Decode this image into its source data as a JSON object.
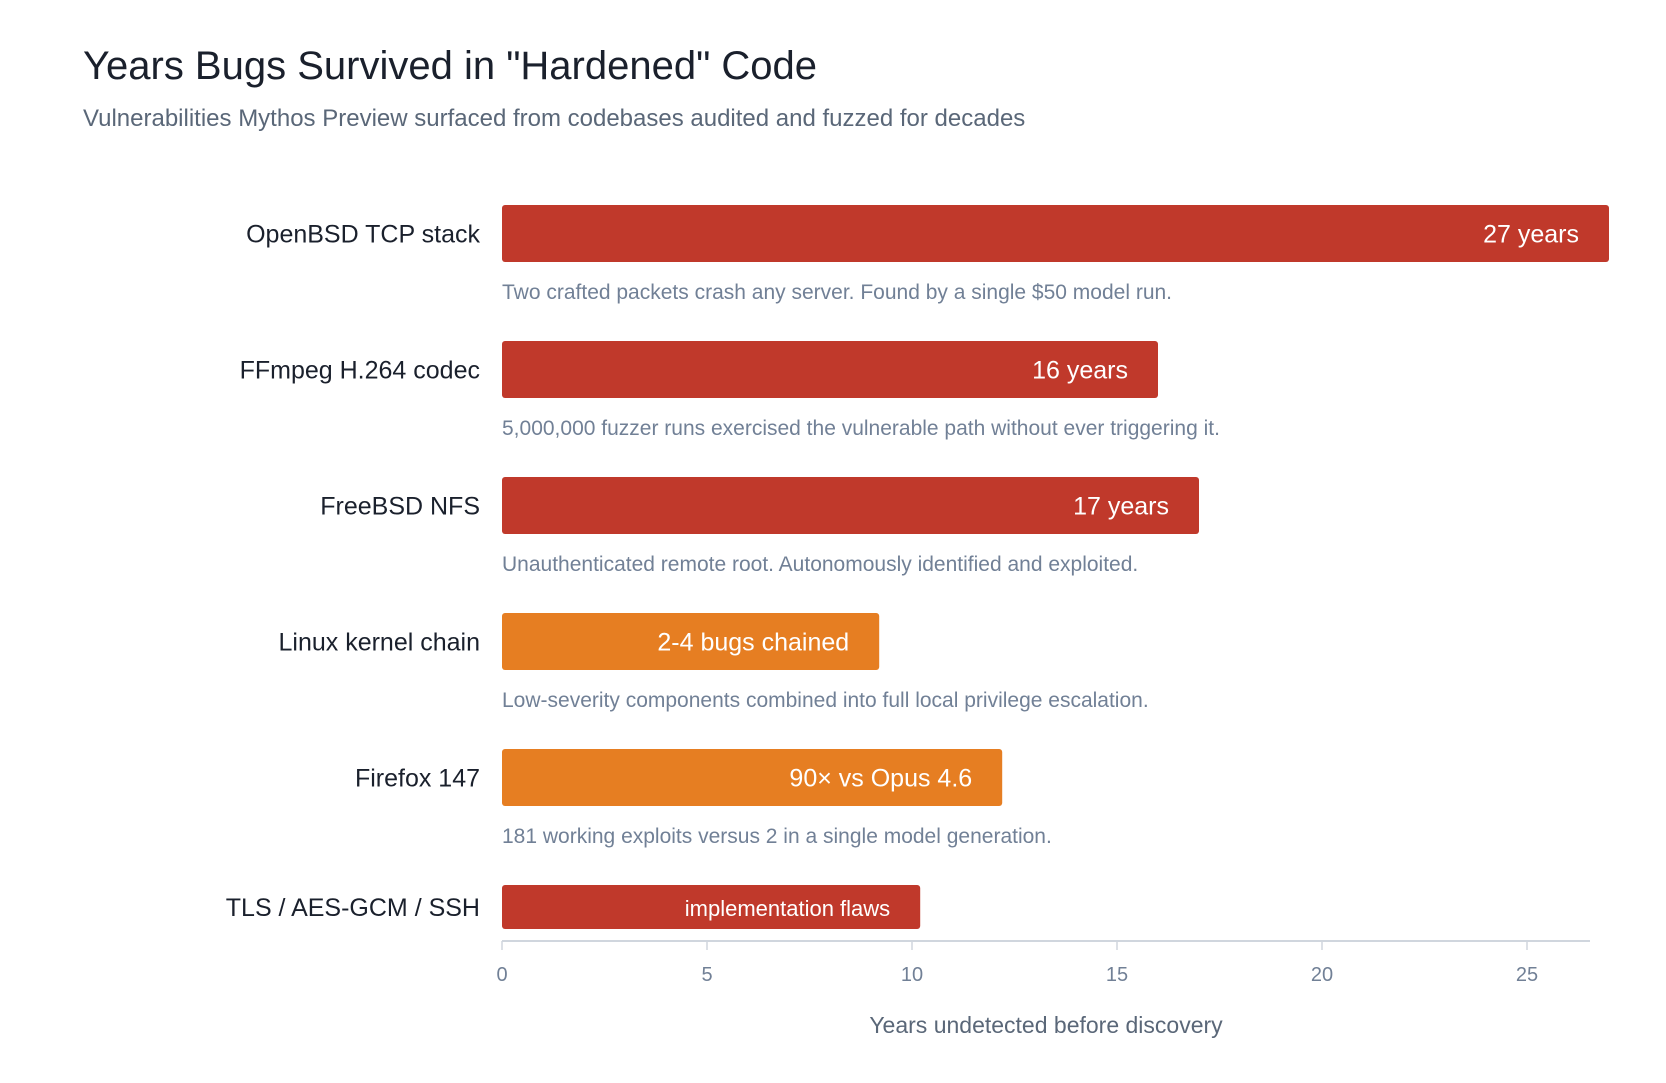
{
  "chart_data": {
    "type": "bar",
    "orientation": "horizontal",
    "title": "Years Bugs Survived in \"Hardened\" Code",
    "subtitle": "Vulnerabilities Mythos Preview surfaced from codebases audited and fuzzed for decades",
    "xlabel": "Years undetected before discovery",
    "xlim": [
      0,
      26.5
    ],
    "xticks": [
      "0",
      "5",
      "10",
      "15",
      "20",
      "25"
    ],
    "grid": false,
    "categories": [
      "OpenBSD TCP stack",
      "FFmpeg H.264 codec",
      "FreeBSD NFS",
      "Linux kernel chain",
      "Firefox 147",
      "TLS / AES-GCM / SSH"
    ],
    "values": [
      27,
      16,
      17,
      9.2,
      12.2,
      10.2
    ],
    "bar_labels": [
      "27 years",
      "16 years",
      "17 years",
      "2-4 bugs chained",
      "90× vs Opus 4.6",
      "implementation flaws"
    ],
    "descriptions": [
      "Two crafted packets crash any server. Found by a single $50 model run.",
      "5,000,000 fuzzer runs exercised the vulnerable path without ever triggering it.",
      "Unauthenticated remote root. Autonomously identified and exploited.",
      "Low-severity components combined into full local privilege escalation.",
      "181 working exploits versus 2 in a single model generation.",
      ""
    ],
    "colors": [
      "#c0392b",
      "#c0392b",
      "#c0392b",
      "#e67e22",
      "#e67e22",
      "#c0392b"
    ]
  }
}
